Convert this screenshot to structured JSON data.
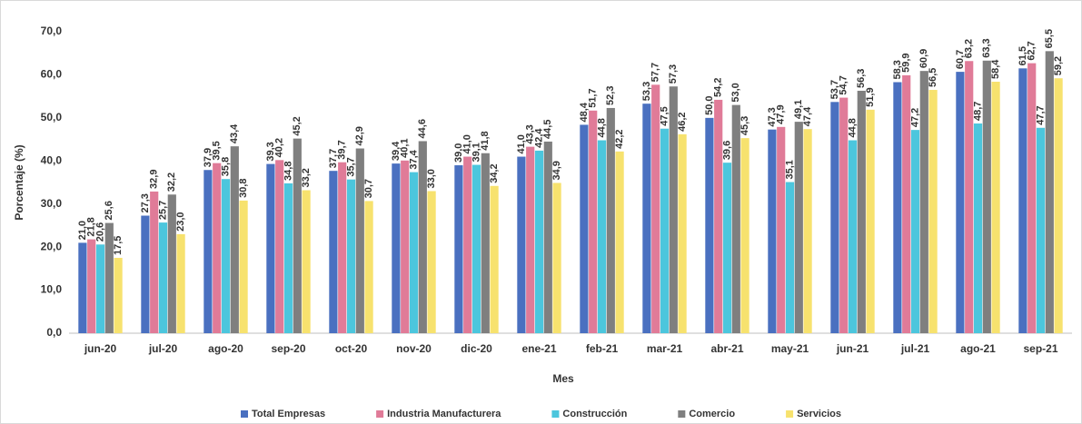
{
  "chart_data": {
    "type": "bar",
    "x_label": "Mes",
    "y_label": "Porcentaje (%)",
    "categories": [
      "jun-20",
      "jul-20",
      "ago-20",
      "sep-20",
      "oct-20",
      "nov-20",
      "dic-20",
      "ene-21",
      "feb-21",
      "mar-21",
      "abr-21",
      "may-21",
      "jun-21",
      "jul-21",
      "ago-21",
      "sep-21"
    ],
    "series": [
      {
        "name": "Total Empresas",
        "color": "#4a70c0",
        "values": [
          21.0,
          27.3,
          37.9,
          39.3,
          37.7,
          39.4,
          39.0,
          41.0,
          48.4,
          53.3,
          50.0,
          47.3,
          53.7,
          58.3,
          60.7,
          61.5
        ],
        "value_labels": [
          "21,0",
          "27,3",
          "37,9",
          "39,3",
          "37,7",
          "39,4",
          "39,0",
          "41,0",
          "48,4",
          "53,3",
          "50,0",
          "47,3",
          "53,7",
          "58,3",
          "60,7",
          "61,5"
        ]
      },
      {
        "name": "Industria Manufacturera",
        "color": "#e07b98",
        "values": [
          21.8,
          32.9,
          39.5,
          40.2,
          39.7,
          40.1,
          41.0,
          43.3,
          51.7,
          57.7,
          54.2,
          47.9,
          54.7,
          59.9,
          63.2,
          62.7
        ],
        "value_labels": [
          "21,8",
          "32,9",
          "39,5",
          "40,2",
          "39,7",
          "40,1",
          "41,0",
          "43,3",
          "51,7",
          "57,7",
          "54,2",
          "47,9",
          "54,7",
          "59,9",
          "63,2",
          "62,7"
        ]
      },
      {
        "name": "Construcción",
        "color": "#4cc6dd",
        "values": [
          20.6,
          25.7,
          35.8,
          34.8,
          35.7,
          37.4,
          39.1,
          42.4,
          44.8,
          47.5,
          39.6,
          35.1,
          44.8,
          47.2,
          48.7,
          47.7
        ],
        "value_labels": [
          "20,6",
          "25,7",
          "35,8",
          "34,8",
          "35,7",
          "37,4",
          "39,1",
          "42,4",
          "44,8",
          "47,5",
          "39,6",
          "35,1",
          "44,8",
          "47,2",
          "48,7",
          "47,7"
        ]
      },
      {
        "name": "Comercio",
        "color": "#7f7f7f",
        "values": [
          25.6,
          32.2,
          43.4,
          45.2,
          42.9,
          44.6,
          41.8,
          44.5,
          52.3,
          57.3,
          53.0,
          49.1,
          56.3,
          60.9,
          63.3,
          65.5
        ],
        "value_labels": [
          "25,6",
          "32,2",
          "43,4",
          "45,2",
          "42,9",
          "44,6",
          "41,8",
          "44,5",
          "52,3",
          "57,3",
          "53,0",
          "49,1",
          "56,3",
          "60,9",
          "63,3",
          "65,5"
        ]
      },
      {
        "name": "Servicios",
        "color": "#f7e26e",
        "values": [
          17.5,
          23.0,
          30.8,
          33.2,
          30.7,
          33.0,
          34.2,
          34.9,
          42.2,
          46.2,
          45.3,
          47.4,
          51.9,
          56.5,
          58.4,
          59.2
        ],
        "value_labels": [
          "17,5",
          "23,0",
          "30,8",
          "33,2",
          "30,7",
          "33,0",
          "34,2",
          "34,9",
          "42,2",
          "46,2",
          "45,3",
          "47,4",
          "51,9",
          "56,5",
          "58,4",
          "59,2"
        ]
      }
    ],
    "ylim": [
      0,
      70
    ],
    "yticks": [
      {
        "value": 0,
        "label": "0,0"
      },
      {
        "value": 10,
        "label": "10,0"
      },
      {
        "value": 20,
        "label": "20,0"
      },
      {
        "value": 30,
        "label": "30,0"
      },
      {
        "value": 40,
        "label": "40,0"
      },
      {
        "value": 50,
        "label": "50,0"
      },
      {
        "value": 60,
        "label": "60,0"
      },
      {
        "value": 70,
        "label": "70,0"
      }
    ],
    "grid": false,
    "legend": "bottom"
  }
}
